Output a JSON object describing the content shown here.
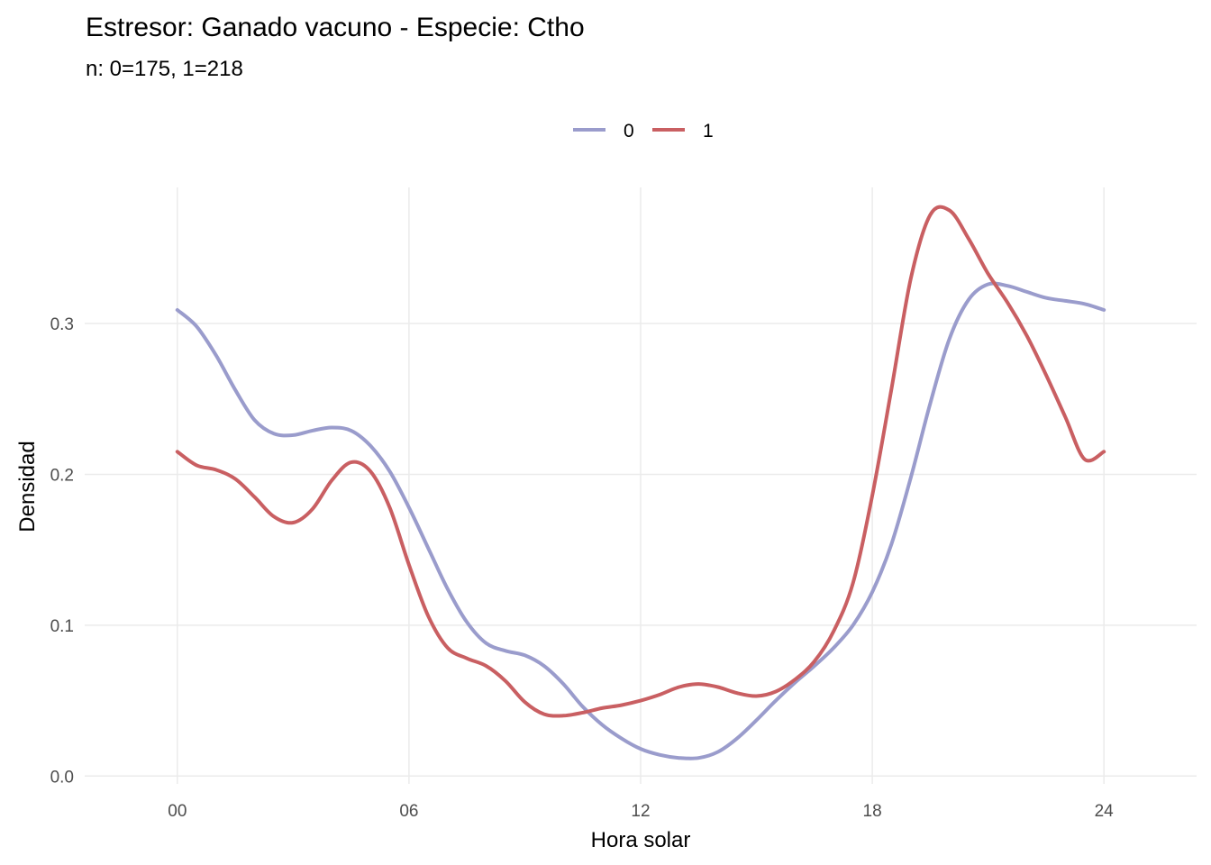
{
  "chart_data": {
    "type": "line",
    "title": "Estresor: Ganado vacuno - Especie:  Ctho",
    "subtitle": "n:  0=175, 1=218",
    "xlabel": "Hora solar",
    "ylabel": "Densidad",
    "xlim": [
      -2.4,
      26.4
    ],
    "ylim": [
      -0.01,
      0.395
    ],
    "x_ticks": [
      0,
      6,
      12,
      18,
      24
    ],
    "x_tick_labels": [
      "00",
      "06",
      "12",
      "18",
      "24"
    ],
    "y_ticks": [
      0.0,
      0.1,
      0.2,
      0.3
    ],
    "y_tick_labels": [
      "0.0",
      "0.1",
      "0.2",
      "0.3"
    ],
    "grid": true,
    "legend_position": "top",
    "series": [
      {
        "name": "0",
        "color": "#9a9ccc",
        "x": [
          0,
          0.5,
          1,
          1.5,
          2,
          2.5,
          3,
          3.5,
          4,
          4.5,
          5,
          5.5,
          6,
          6.5,
          7,
          7.5,
          8,
          8.5,
          9,
          9.5,
          10,
          10.5,
          11,
          11.5,
          12,
          12.5,
          13,
          13.5,
          14,
          14.5,
          15,
          15.5,
          16,
          16.5,
          17,
          17.5,
          18,
          18.5,
          19,
          19.5,
          20,
          20.5,
          21,
          21.5,
          22,
          22.5,
          23,
          23.5,
          24
        ],
        "y": [
          0.309,
          0.298,
          0.279,
          0.256,
          0.236,
          0.227,
          0.226,
          0.229,
          0.231,
          0.229,
          0.219,
          0.202,
          0.178,
          0.151,
          0.124,
          0.102,
          0.088,
          0.083,
          0.08,
          0.073,
          0.061,
          0.046,
          0.034,
          0.025,
          0.018,
          0.014,
          0.012,
          0.012,
          0.016,
          0.025,
          0.037,
          0.05,
          0.062,
          0.073,
          0.085,
          0.1,
          0.122,
          0.154,
          0.198,
          0.247,
          0.29,
          0.316,
          0.326,
          0.325,
          0.321,
          0.317,
          0.315,
          0.313,
          0.309
        ]
      },
      {
        "name": "1",
        "color": "#c95f62",
        "x": [
          0,
          0.5,
          1,
          1.5,
          2,
          2.5,
          3,
          3.5,
          4,
          4.5,
          5,
          5.5,
          6,
          6.5,
          7,
          7.5,
          8,
          8.5,
          9,
          9.5,
          10,
          10.5,
          11,
          11.5,
          12,
          12.5,
          13,
          13.5,
          14,
          14.5,
          15,
          15.5,
          16,
          16.5,
          17,
          17.5,
          18,
          18.5,
          19,
          19.5,
          20,
          20.5,
          21,
          21.5,
          22,
          22.5,
          23,
          23.5,
          24
        ],
        "y": [
          0.215,
          0.206,
          0.203,
          0.197,
          0.185,
          0.172,
          0.168,
          0.177,
          0.196,
          0.208,
          0.202,
          0.178,
          0.14,
          0.106,
          0.085,
          0.078,
          0.073,
          0.063,
          0.049,
          0.041,
          0.04,
          0.042,
          0.045,
          0.047,
          0.05,
          0.054,
          0.059,
          0.061,
          0.059,
          0.055,
          0.053,
          0.056,
          0.064,
          0.076,
          0.096,
          0.128,
          0.186,
          0.257,
          0.33,
          0.372,
          0.375,
          0.356,
          0.333,
          0.314,
          0.292,
          0.266,
          0.238,
          0.21,
          0.215
        ]
      }
    ]
  }
}
